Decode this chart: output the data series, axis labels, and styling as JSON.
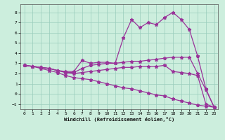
{
  "xlabel": "Windchill (Refroidissement éolien,°C)",
  "ylabel": "",
  "bg_color": "#cceedd",
  "line_color": "#993399",
  "grid_color": "#99ccbb",
  "xlim": [
    -0.5,
    23.5
  ],
  "ylim": [
    -1.5,
    8.8
  ],
  "yticks": [
    -1,
    0,
    1,
    2,
    3,
    4,
    5,
    6,
    7,
    8
  ],
  "xticks": [
    0,
    1,
    2,
    3,
    4,
    5,
    6,
    7,
    8,
    9,
    10,
    11,
    12,
    13,
    14,
    15,
    16,
    17,
    18,
    19,
    20,
    21,
    22,
    23
  ],
  "line1_x": [
    0,
    1,
    2,
    3,
    4,
    5,
    6,
    7,
    8,
    9,
    10,
    11,
    12,
    13,
    14,
    15,
    16,
    17,
    18,
    19,
    20,
    21,
    22,
    23
  ],
  "line1_y": [
    2.8,
    2.7,
    2.6,
    2.5,
    2.3,
    2.2,
    2.2,
    3.3,
    3.0,
    3.1,
    3.1,
    3.0,
    5.5,
    7.3,
    6.5,
    7.0,
    6.8,
    7.5,
    8.0,
    7.3,
    6.3,
    3.7,
    0.5,
    -1.3
  ],
  "line2_x": [
    0,
    1,
    2,
    3,
    4,
    5,
    6,
    7,
    8,
    9,
    10,
    11,
    12,
    13,
    14,
    15,
    16,
    17,
    18,
    19,
    20,
    21,
    22,
    23
  ],
  "line2_y": [
    2.8,
    2.7,
    2.6,
    2.5,
    2.3,
    2.1,
    2.1,
    2.5,
    2.8,
    2.9,
    3.0,
    3.0,
    3.1,
    3.2,
    3.2,
    3.3,
    3.4,
    3.5,
    3.6,
    3.6,
    3.6,
    2.0,
    0.4,
    -1.3
  ],
  "line3_x": [
    0,
    1,
    2,
    3,
    4,
    5,
    6,
    7,
    8,
    9,
    10,
    11,
    12,
    13,
    14,
    15,
    16,
    17,
    18,
    19,
    20,
    21,
    22,
    23
  ],
  "line3_y": [
    2.8,
    2.7,
    2.6,
    2.5,
    2.3,
    2.1,
    2.0,
    2.1,
    2.2,
    2.3,
    2.4,
    2.5,
    2.6,
    2.6,
    2.7,
    2.7,
    2.7,
    2.8,
    2.2,
    2.1,
    2.0,
    1.8,
    -1.0,
    -1.3
  ],
  "line4_x": [
    0,
    1,
    2,
    3,
    4,
    5,
    6,
    7,
    8,
    9,
    10,
    11,
    12,
    13,
    14,
    15,
    16,
    17,
    18,
    19,
    20,
    21,
    22,
    23
  ],
  "line4_y": [
    2.8,
    2.7,
    2.5,
    2.3,
    2.1,
    1.8,
    1.6,
    1.5,
    1.4,
    1.2,
    1.0,
    0.8,
    0.6,
    0.5,
    0.3,
    0.1,
    -0.1,
    -0.2,
    -0.5,
    -0.7,
    -0.9,
    -1.1,
    -1.2,
    -1.3
  ],
  "figwidth": 3.2,
  "figheight": 2.0,
  "dpi": 100
}
